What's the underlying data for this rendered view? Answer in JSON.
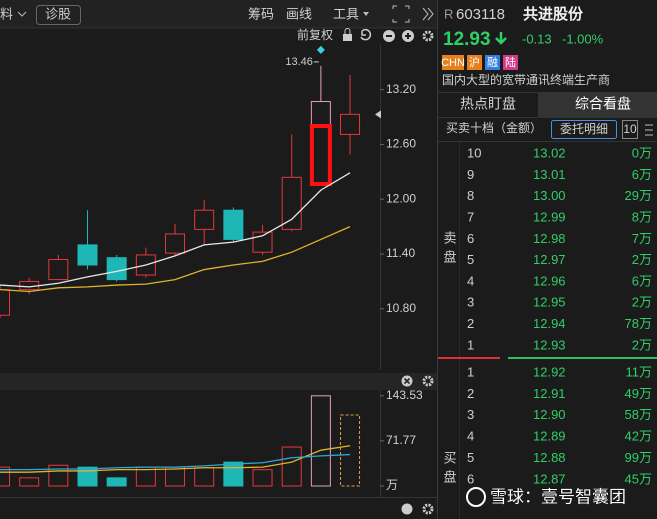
{
  "toolbar": {
    "left_cut": "料",
    "diagnose": "诊股",
    "chips": "筹码",
    "draw": "画线",
    "tools": "工具",
    "adjust": "前复权"
  },
  "quote": {
    "prefix": "R",
    "code": "603118",
    "name": "共进股份",
    "price": "12.93",
    "change": "-0.13",
    "change_pct": "-1.00%",
    "tags": [
      "CHN",
      "沪",
      "融",
      "陆"
    ],
    "description": "国内大型的宽带通讯终端生产商"
  },
  "tabs": [
    "热点盯盘",
    "综合看盘"
  ],
  "orderbook": {
    "title": "买卖十档（金额）",
    "detail_button": "委托明细",
    "depth_button": "10",
    "ask_label": "卖盘",
    "bid_label": "买盘",
    "asks": [
      [
        "10",
        "13.02",
        "0万"
      ],
      [
        "9",
        "13.01",
        "6万"
      ],
      [
        "8",
        "13.00",
        "29万"
      ],
      [
        "7",
        "12.99",
        "8万"
      ],
      [
        "6",
        "12.98",
        "7万"
      ],
      [
        "5",
        "12.97",
        "2万"
      ],
      [
        "4",
        "12.96",
        "6万"
      ],
      [
        "3",
        "12.95",
        "2万"
      ],
      [
        "2",
        "12.94",
        "78万"
      ],
      [
        "1",
        "12.93",
        "2万"
      ]
    ],
    "bids": [
      [
        "1",
        "12.92",
        "11万"
      ],
      [
        "2",
        "12.91",
        "49万"
      ],
      [
        "3",
        "12.90",
        "58万"
      ],
      [
        "4",
        "12.89",
        "42万"
      ],
      [
        "5",
        "12.88",
        "99万"
      ],
      [
        "6",
        "12.87",
        "45万"
      ]
    ]
  },
  "watermark": "雪球：壹号智囊团",
  "chart_data": [
    {
      "type": "candlestick",
      "up_color": "#e8373a",
      "down_color": "#1fb6b6",
      "limit_color": "#e99bc3",
      "open": [
        10.73,
        11.01,
        11.12,
        11.5,
        11.36,
        11.17,
        11.41,
        11.67,
        11.88,
        11.42,
        11.67,
        12.16,
        12.71
      ],
      "close": [
        11.01,
        11.1,
        11.34,
        11.28,
        11.12,
        11.39,
        11.62,
        11.88,
        11.56,
        11.64,
        12.24,
        13.07,
        12.93
      ],
      "high": [
        11.05,
        11.14,
        11.39,
        11.88,
        11.39,
        11.47,
        11.73,
        11.99,
        11.91,
        11.72,
        12.71,
        13.46,
        13.36
      ],
      "low": [
        10.7,
        10.96,
        11.12,
        11.23,
        11.1,
        11.14,
        11.39,
        11.5,
        11.53,
        11.39,
        11.65,
        12.16,
        12.49
      ],
      "series": [
        {
          "color": "#e8e8e8",
          "values": [
            11.06,
            11.04,
            11.08,
            11.15,
            11.21,
            11.28,
            11.38,
            11.5,
            11.53,
            11.6,
            11.78,
            12.1,
            12.29
          ]
        },
        {
          "color": "#e0b32a",
          "values": [
            11.01,
            10.99,
            11.03,
            11.04,
            11.06,
            11.07,
            11.12,
            11.23,
            11.28,
            11.32,
            11.42,
            11.56,
            11.7
          ]
        }
      ],
      "ylim": [
        10.13,
        13.7
      ],
      "yticks": [
        {
          "value": 10.8,
          "label": "10.80"
        },
        {
          "value": 11.4,
          "label": "11.40"
        },
        {
          "value": 12.0,
          "label": "12.00"
        },
        {
          "value": 12.6,
          "label": "12.60"
        },
        {
          "value": 13.2,
          "label": "13.20"
        }
      ]
    },
    {
      "type": "bar",
      "up_color": "#e8373a",
      "down_color": "#1fb6b6",
      "limit_color": "#e99bc3",
      "values": [
        30,
        13,
        33,
        30,
        13,
        30,
        30,
        29,
        38,
        26,
        62,
        143.53,
        113
      ],
      "series": [
        {
          "color": "#e0b32a",
          "values": [
            22,
            22,
            24,
            24,
            26,
            26,
            27,
            29,
            29,
            30,
            38,
            57,
            64
          ]
        },
        {
          "color": "#29a9d8",
          "values": [
            26,
            26,
            27,
            27,
            29,
            30,
            30,
            32,
            35,
            37,
            45,
            48,
            50
          ]
        }
      ],
      "ylim": [
        0,
        148
      ],
      "yticks": [
        {
          "value": 0,
          "label": "万"
        },
        71.77,
        143.53
      ]
    }
  ]
}
